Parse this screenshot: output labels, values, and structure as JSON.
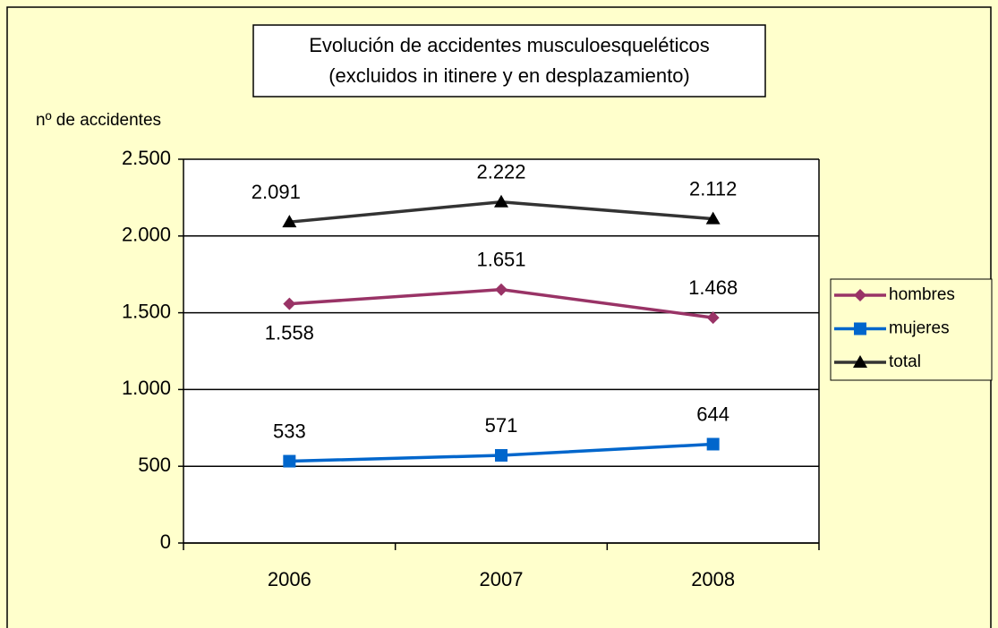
{
  "chart_data": {
    "type": "line",
    "title": "Evolución de accidentes musculoesqueléticos",
    "subtitle": "(excluidos in itinere y en desplazamiento)",
    "y_label": "nº de accidentes",
    "categories": [
      "2006",
      "2007",
      "2008"
    ],
    "ylim": [
      0,
      2500
    ],
    "yticks": [
      0,
      {
        "value": 500,
        "label": "500"
      },
      {
        "value": 1000,
        "label": "1.000"
      },
      {
        "value": 1500,
        "label": "1.500"
      },
      {
        "value": 2000,
        "label": "2.000"
      },
      {
        "value": 2500,
        "label": "2.500"
      }
    ],
    "grid": true,
    "legend": "right",
    "series": [
      {
        "name": "hombres",
        "color": "#993366",
        "marker": "diamond",
        "values": [
          1558,
          1651,
          1468
        ],
        "value_labels": [
          "1.558",
          "1.651",
          "1.468"
        ]
      },
      {
        "name": "mujeres",
        "color": "#0066cc",
        "marker": "square",
        "values": [
          533,
          571,
          644
        ],
        "value_labels": [
          "533",
          "571",
          "644"
        ]
      },
      {
        "name": "total",
        "color": "#333333",
        "marker": "triangle",
        "values": [
          2091,
          2222,
          2112
        ],
        "value_labels": [
          "2.091",
          "2.222",
          "2.112"
        ]
      }
    ]
  }
}
